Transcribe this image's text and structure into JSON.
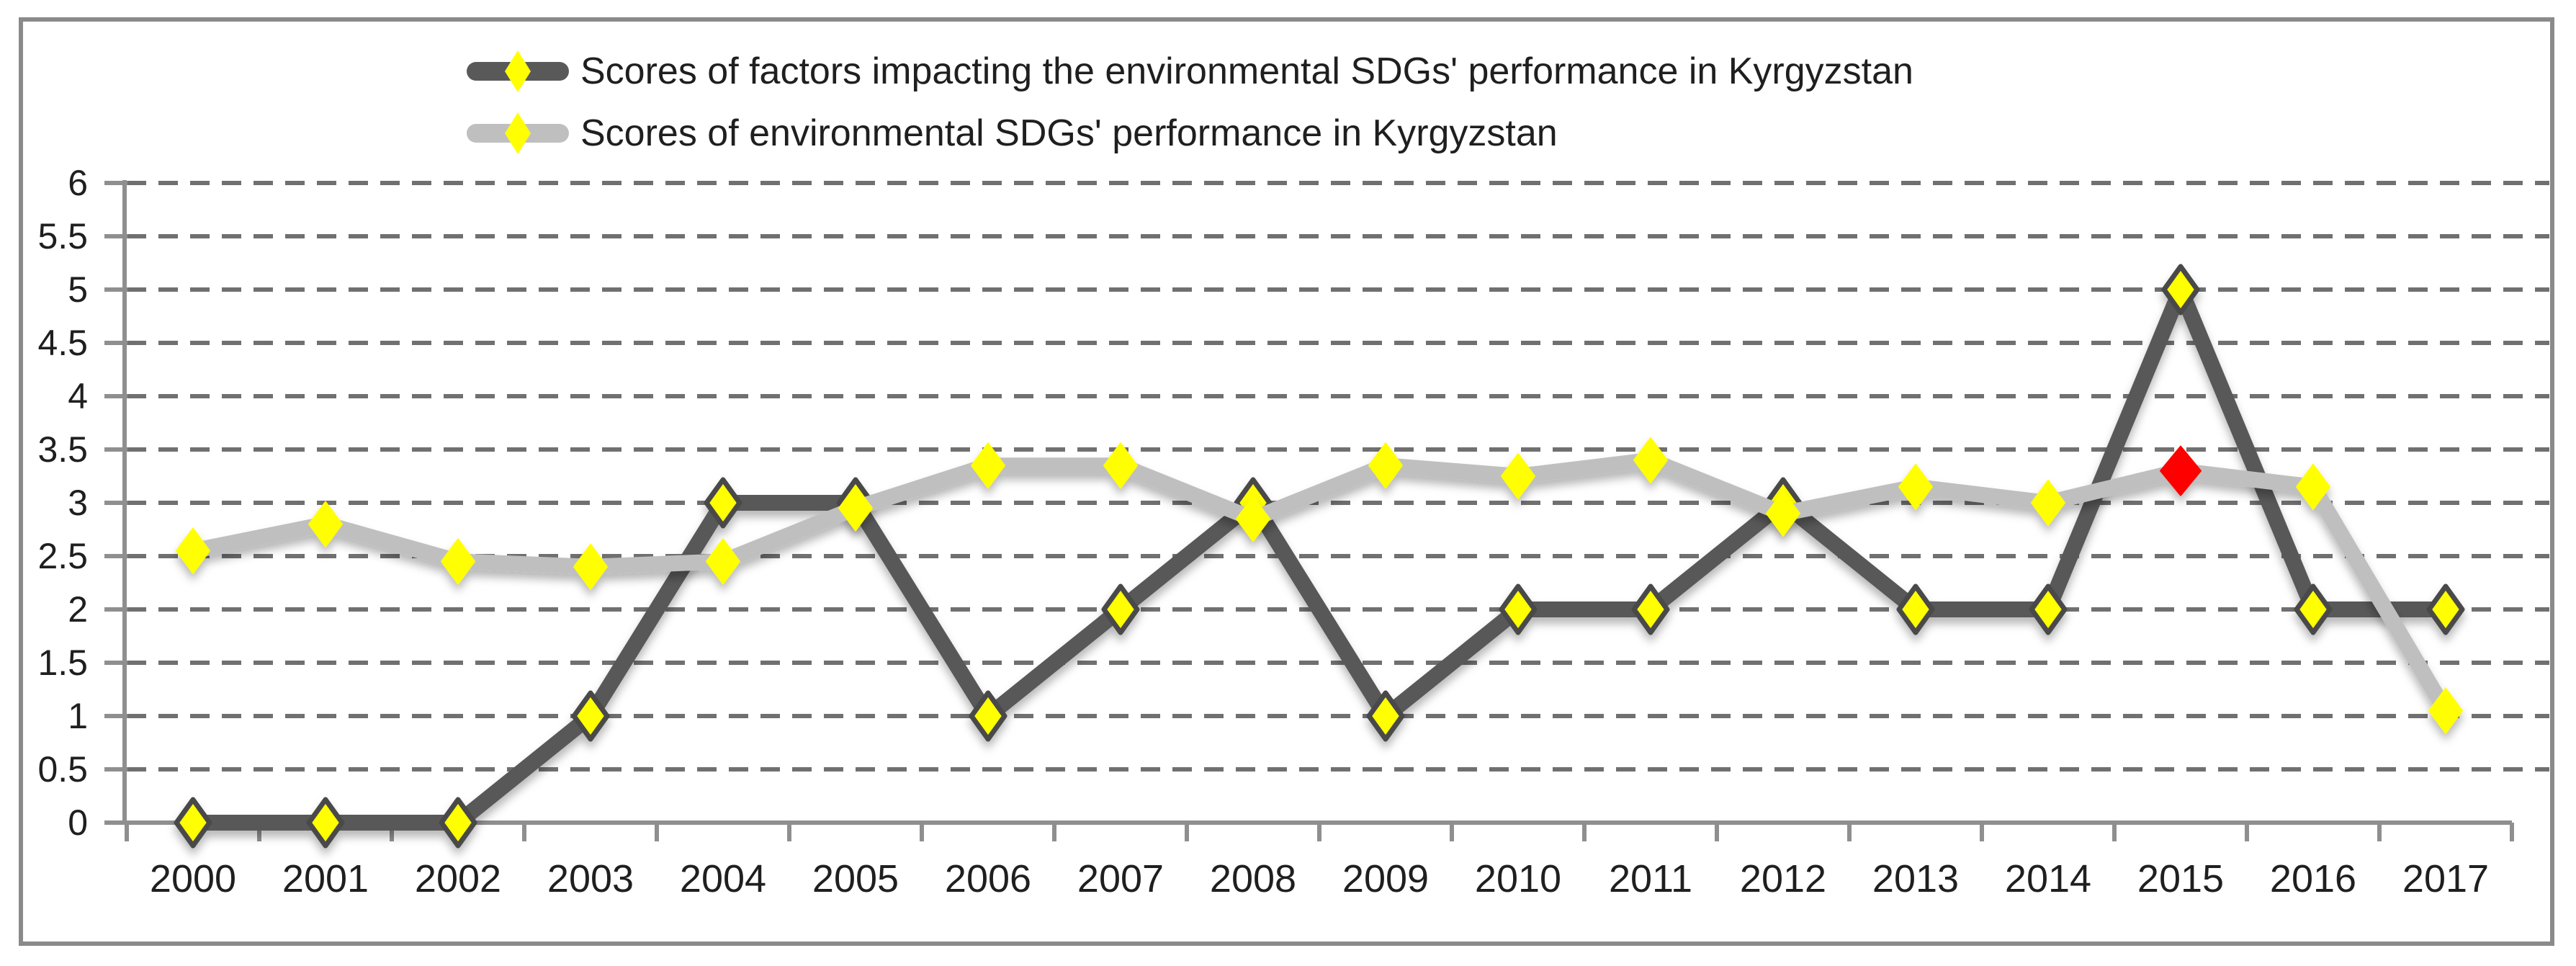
{
  "colors": {
    "series1_line": "#595959",
    "series2_line": "#bfbfbf",
    "marker_fill": "#ffff00",
    "marker_outline": "#4a4a4a",
    "highlight_red": "#ff0000",
    "gridline": "#707070",
    "axis": "#8f8f8f",
    "text": "#1f1f1f",
    "frame_border": "#8a8a8a",
    "background": "#ffffff"
  },
  "legend": {
    "position": "top-center",
    "rows": [
      {
        "label": "Scores of factors impacting the environmental SDGs' performance in Kyrgyzstan"
      },
      {
        "label": "Scores of environmental SDGs' performance in Kyrgyzstan"
      }
    ]
  },
  "chart_data": {
    "type": "line",
    "x": [
      "2000",
      "2001",
      "2002",
      "2003",
      "2004",
      "2005",
      "2006",
      "2007",
      "2008",
      "2009",
      "2010",
      "2011",
      "2012",
      "2013",
      "2014",
      "2015",
      "2016",
      "2017"
    ],
    "series": [
      {
        "name": "Scores of factors impacting the environmental SDGs' performance in Kyrgyzstan",
        "color": "#595959",
        "marker": "yellow-diamond-dark-outline",
        "values": [
          0,
          0,
          0,
          1,
          3,
          3,
          1,
          2,
          3,
          1,
          2,
          2,
          3,
          2,
          2,
          5,
          2,
          2
        ]
      },
      {
        "name": "Scores of environmental SDGs' performance in Kyrgyzstan",
        "color": "#bfbfbf",
        "marker": "yellow-diamond",
        "values": [
          2.55,
          2.8,
          2.45,
          2.4,
          2.45,
          2.95,
          3.35,
          3.35,
          2.85,
          3.35,
          3.25,
          3.4,
          2.9,
          3.15,
          3.0,
          3.3,
          3.15,
          1.05
        ],
        "highlight_point": {
          "x": "2015",
          "value": 3.3,
          "color": "#ff0000",
          "marker": "red-diamond"
        }
      }
    ],
    "ylim": [
      0,
      6
    ],
    "ytick_step": 0.5,
    "yticks": [
      "6",
      "5.5",
      "5",
      "4.5",
      "4",
      "3.5",
      "3",
      "2.5",
      "2",
      "1.5",
      "1",
      "0.5",
      "0"
    ],
    "grid": "horizontal-dashed",
    "legend_position": "top",
    "xlabel": "",
    "ylabel": ""
  }
}
